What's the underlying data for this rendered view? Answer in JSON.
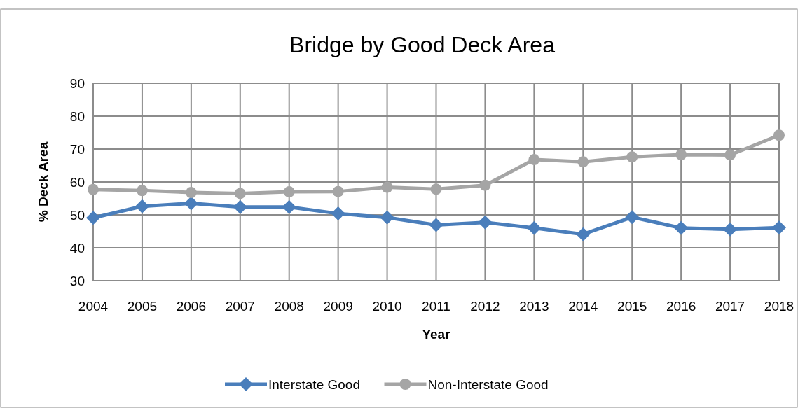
{
  "chart_data": {
    "type": "line",
    "title": "Bridge by Good Deck Area",
    "xlabel": "Year",
    "ylabel": "% Deck Area",
    "categories": [
      "2004",
      "2005",
      "2006",
      "2007",
      "2008",
      "2009",
      "2010",
      "2011",
      "2012",
      "2013",
      "2014",
      "2015",
      "2016",
      "2017",
      "2018"
    ],
    "series": [
      {
        "name": "Interstate Good",
        "color": "#4a7ebb",
        "marker": "diamond",
        "values": [
          49.1,
          52.6,
          53.5,
          52.4,
          52.4,
          50.4,
          49.2,
          46.9,
          47.7,
          46.0,
          44.1,
          49.3,
          46.0,
          45.6,
          46.1
        ]
      },
      {
        "name": "Non-Interstate Good",
        "color": "#a5a5a5",
        "marker": "circle",
        "values": [
          57.7,
          57.4,
          56.8,
          56.5,
          57.0,
          57.1,
          58.4,
          57.8,
          59.0,
          66.8,
          66.1,
          67.6,
          68.3,
          68.2,
          74.2
        ]
      }
    ],
    "ylim": [
      30,
      90
    ],
    "yticks": [
      30,
      40,
      50,
      60,
      70,
      80,
      90
    ],
    "grid": true,
    "legend": "bottom"
  }
}
